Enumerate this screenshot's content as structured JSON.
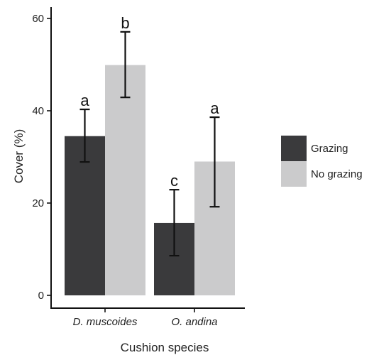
{
  "chart_data": {
    "type": "bar",
    "xlabel": "Cushion species",
    "ylabel": "Cover (%)",
    "ylim": [
      0,
      63
    ],
    "yticks": [
      0,
      20,
      40,
      60
    ],
    "categories": [
      "D. muscoides",
      "O. andina"
    ],
    "series": [
      {
        "name": "Grazing",
        "color": "#3a3a3c",
        "values": [
          34.5,
          15.7
        ],
        "err_low": [
          28.9,
          8.6
        ],
        "err_high": [
          40.3,
          22.9
        ],
        "letters": [
          "a",
          "c"
        ]
      },
      {
        "name": "No grazing",
        "color": "#cbcbcc",
        "values": [
          49.9,
          29.0
        ],
        "err_low": [
          42.9,
          19.2
        ],
        "err_high": [
          57.1,
          38.6
        ],
        "letters": [
          "b",
          "a"
        ]
      }
    ],
    "legend_position": "right",
    "grid": false
  }
}
